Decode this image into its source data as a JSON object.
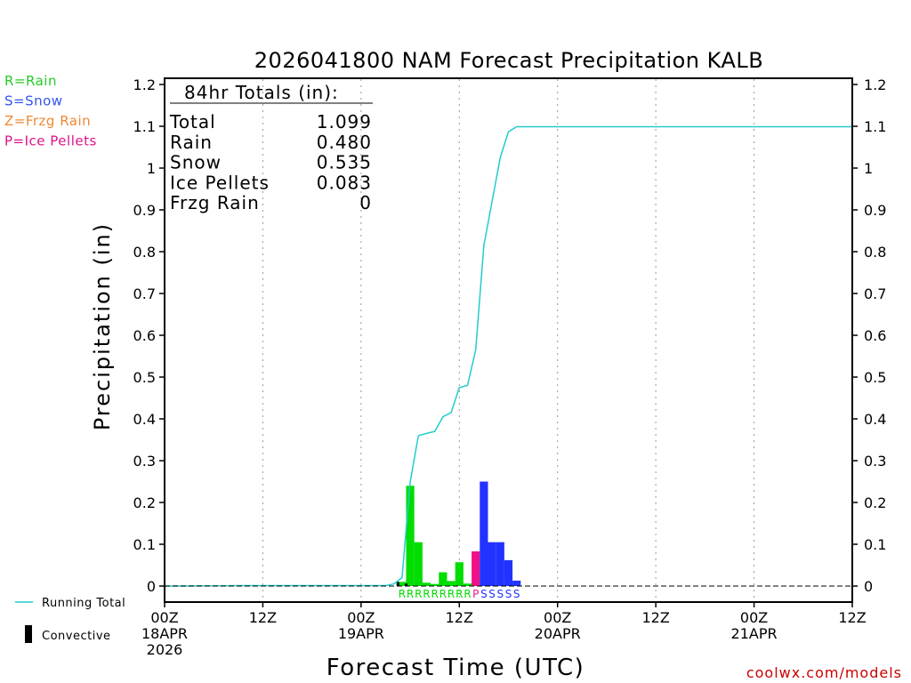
{
  "chart_data": {
    "type": "bar",
    "title": "2026041800 NAM Forecast Precipitation KALB",
    "xlabel": "Forecast Time (UTC)",
    "ylabel": "Precipitation (in)",
    "ylim": [
      0,
      1.2
    ],
    "xlim_hours": [
      0,
      84
    ],
    "y_ticks": [
      "0",
      "0.1",
      "0.2",
      "0.3",
      "0.4",
      "0.5",
      "0.6",
      "0.7",
      "0.8",
      "0.9",
      "1",
      "1.1",
      "1.2"
    ],
    "x_ticks": [
      {
        "hour": 0,
        "lines": [
          "00Z",
          "18APR",
          "2026"
        ]
      },
      {
        "hour": 12,
        "lines": [
          "12Z"
        ]
      },
      {
        "hour": 24,
        "lines": [
          "00Z",
          "19APR"
        ]
      },
      {
        "hour": 36,
        "lines": [
          "12Z"
        ]
      },
      {
        "hour": 48,
        "lines": [
          "00Z",
          "20APR"
        ]
      },
      {
        "hour": 60,
        "lines": [
          "12Z"
        ]
      },
      {
        "hour": 72,
        "lines": [
          "00Z",
          "21APR"
        ]
      },
      {
        "hour": 84,
        "lines": [
          "12Z"
        ]
      }
    ],
    "totals_box": {
      "heading": "84hr Totals (in):",
      "rows": [
        {
          "label": "Total",
          "value": "1.099"
        },
        {
          "label": "Rain",
          "value": "0.480"
        },
        {
          "label": "Snow",
          "value": "0.535"
        },
        {
          "label": "Ice Pellets",
          "value": "0.083"
        },
        {
          "label": "Frzg Rain",
          "value": "0"
        }
      ]
    },
    "type_legend": [
      {
        "text": "R=Rain",
        "color": "#22cc22"
      },
      {
        "text": "S=Snow",
        "color": "#3355ee"
      },
      {
        "text": "Z=Frzg Rain",
        "color": "#ee8833"
      },
      {
        "text": "P=Ice Pellets",
        "color": "#dd1188"
      }
    ],
    "line_legend": {
      "running_total": "Running Total",
      "convective": "Convective"
    },
    "bars": [
      {
        "hour": 29,
        "value": 0.01,
        "ptype": "R",
        "color": "#00dd00"
      },
      {
        "hour": 30,
        "value": 0.24,
        "ptype": "R",
        "color": "#00dd00"
      },
      {
        "hour": 31,
        "value": 0.105,
        "ptype": "R",
        "color": "#00dd00"
      },
      {
        "hour": 32,
        "value": 0.008,
        "ptype": "R",
        "color": "#00dd00"
      },
      {
        "hour": 33,
        "value": 0.005,
        "ptype": "R",
        "color": "#00dd00"
      },
      {
        "hour": 34,
        "value": 0.033,
        "ptype": "R",
        "color": "#00dd00"
      },
      {
        "hour": 35,
        "value": 0.012,
        "ptype": "R",
        "color": "#00dd00"
      },
      {
        "hour": 36,
        "value": 0.057,
        "ptype": "R",
        "color": "#00dd00"
      },
      {
        "hour": 37,
        "value": 0.006,
        "ptype": "R",
        "color": "#00dd00"
      },
      {
        "hour": 38,
        "value": 0.083,
        "ptype": "P",
        "color": "#ee1188"
      },
      {
        "hour": 39,
        "value": 0.25,
        "ptype": "S",
        "color": "#2233ff"
      },
      {
        "hour": 40,
        "value": 0.105,
        "ptype": "S",
        "color": "#2233ff"
      },
      {
        "hour": 41,
        "value": 0.105,
        "ptype": "S",
        "color": "#2233ff"
      },
      {
        "hour": 42,
        "value": 0.062,
        "ptype": "S",
        "color": "#2233ff"
      },
      {
        "hour": 43,
        "value": 0.013,
        "ptype": "S",
        "color": "#2233ff"
      }
    ],
    "convective": [
      {
        "hour": 28.5,
        "value": 0.01
      },
      {
        "hour": 29.5,
        "value": 0.006
      }
    ],
    "running_total": {
      "color": "#22cccc",
      "points": [
        [
          0,
          0
        ],
        [
          9,
          0.001
        ],
        [
          27,
          0.001
        ],
        [
          28,
          0.005
        ],
        [
          29,
          0.02
        ],
        [
          30,
          0.25
        ],
        [
          31,
          0.36
        ],
        [
          32,
          0.365
        ],
        [
          33,
          0.37
        ],
        [
          34,
          0.405
        ],
        [
          35,
          0.415
        ],
        [
          36,
          0.475
        ],
        [
          37,
          0.48
        ],
        [
          38,
          0.565
        ],
        [
          39,
          0.815
        ],
        [
          40,
          0.92
        ],
        [
          41,
          1.025
        ],
        [
          42,
          1.087
        ],
        [
          43,
          1.099
        ],
        [
          84,
          1.099
        ]
      ]
    },
    "credit": "coolwx.com/models"
  }
}
